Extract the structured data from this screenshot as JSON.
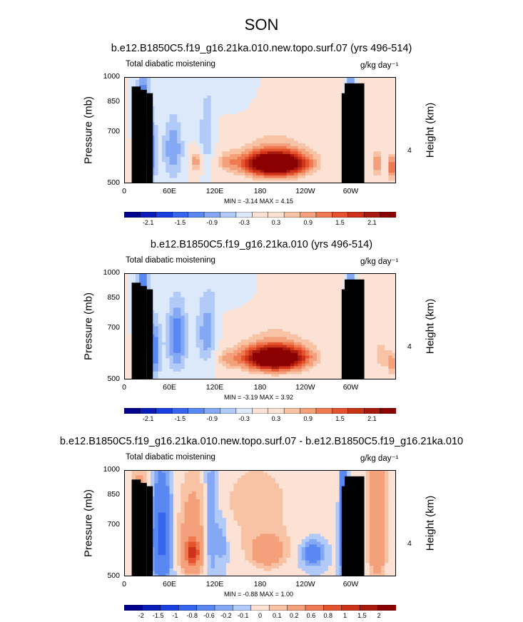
{
  "title": "SON",
  "colors": {
    "land": "#000000",
    "positive_core": "#8b0000",
    "negative_core": "#00008f"
  },
  "chart_data": [
    {
      "type": "heatmap",
      "title": "b.e12.B1850C5.f19_g16.21ka.010.new.topo.surf.07 (yrs 496-514)",
      "left_label": "Total diabatic moistening",
      "units": "g/kg day⁻¹",
      "ylabel": "Pressure (mb)",
      "ylabel_right": "Height (km)",
      "y_ticks": [
        "500",
        "700",
        "850",
        "1000"
      ],
      "right_ticks": [
        "4"
      ],
      "x_ticks": [
        "0",
        "60E",
        "120E",
        "180",
        "120W",
        "60W"
      ],
      "ylim": [
        1000,
        500
      ],
      "xlim": [
        0,
        360
      ],
      "stats": "MIN = -3.14  MAX =  4.15",
      "colorbar_labels": [
        "-2.1",
        "-1.5",
        "-0.9",
        "-0.3",
        "0.3",
        "0.9",
        "1.5",
        "2.1"
      ],
      "colorbar_levels": [
        "-2.4",
        "-2.1",
        "-1.8",
        "-1.5",
        "-1.2",
        "-0.9",
        "-0.6",
        "-0.3",
        "0",
        "0.3",
        "0.6",
        "0.9",
        "1.2",
        "1.5",
        "1.8",
        "2.1",
        "2.4"
      ],
      "features": [
        {
          "lon": 25,
          "p": 650,
          "v": -1.5,
          "wl": 5,
          "wp": 140
        },
        {
          "lon": 35,
          "p": 820,
          "v": -1.2,
          "wl": 6,
          "wp": 120
        },
        {
          "lon": 65,
          "p": 800,
          "v": -0.9,
          "wl": 9,
          "wp": 110
        },
        {
          "lon": 95,
          "p": 870,
          "v": 1.2,
          "wl": 5,
          "wp": 40
        },
        {
          "lon": 110,
          "p": 730,
          "v": -0.6,
          "wl": 8,
          "wp": 130
        },
        {
          "lon": 135,
          "p": 870,
          "v": 0.6,
          "wl": 10,
          "wp": 45
        },
        {
          "lon": 200,
          "p": 880,
          "v": 3.5,
          "wl": 30,
          "wp": 50
        },
        {
          "lon": 200,
          "p": 780,
          "v": 0.6,
          "wl": 45,
          "wp": 150
        },
        {
          "lon": 300,
          "p": 750,
          "v": -2.4,
          "wl": 3,
          "wp": 180
        },
        {
          "lon": 335,
          "p": 880,
          "v": 1.2,
          "wl": 5,
          "wp": 60
        },
        {
          "lon": 355,
          "p": 900,
          "v": 1.5,
          "wl": 5,
          "wp": 60
        },
        {
          "lon": 150,
          "p": 560,
          "v": -0.4,
          "wl": 20,
          "wp": 60
        }
      ],
      "land": [
        {
          "lon0": 10,
          "lon1": 22,
          "p": 940
        },
        {
          "lon0": 20,
          "lon1": 30,
          "p": 920
        },
        {
          "lon0": 30,
          "lon1": 38,
          "p": 900
        },
        {
          "lon0": 288,
          "lon1": 292,
          "p": 900
        },
        {
          "lon0": 292,
          "lon1": 318,
          "p": 960
        }
      ]
    },
    {
      "type": "heatmap",
      "title": "b.e12.B1850C5.f19_g16.21ka.010 (yrs 496-514)",
      "left_label": "Total diabatic moistening",
      "units": "g/kg day⁻¹",
      "ylabel": "Pressure (mb)",
      "ylabel_right": "Height (km)",
      "y_ticks": [
        "500",
        "700",
        "850",
        "1000"
      ],
      "right_ticks": [
        "4"
      ],
      "x_ticks": [
        "0",
        "60E",
        "120E",
        "180",
        "120W",
        "60W"
      ],
      "ylim": [
        1000,
        500
      ],
      "xlim": [
        0,
        360
      ],
      "stats": "MIN = -3.19  MAX =  3.92",
      "colorbar_labels": [
        "-2.1",
        "-1.5",
        "-0.9",
        "-0.3",
        "0.3",
        "0.9",
        "1.5",
        "2.1"
      ],
      "colorbar_levels": [
        "-2.4",
        "-2.1",
        "-1.8",
        "-1.5",
        "-1.2",
        "-0.9",
        "-0.6",
        "-0.3",
        "0",
        "0.3",
        "0.6",
        "0.9",
        "1.2",
        "1.5",
        "1.8",
        "2.1",
        "2.4"
      ],
      "features": [
        {
          "lon": 25,
          "p": 650,
          "v": -1.8,
          "wl": 5,
          "wp": 140
        },
        {
          "lon": 40,
          "p": 830,
          "v": -1.2,
          "wl": 6,
          "wp": 110
        },
        {
          "lon": 70,
          "p": 760,
          "v": -1.2,
          "wl": 9,
          "wp": 120
        },
        {
          "lon": 110,
          "p": 740,
          "v": -0.9,
          "wl": 10,
          "wp": 120
        },
        {
          "lon": 135,
          "p": 880,
          "v": 0.6,
          "wl": 10,
          "wp": 40
        },
        {
          "lon": 200,
          "p": 870,
          "v": 3.3,
          "wl": 30,
          "wp": 50
        },
        {
          "lon": 200,
          "p": 770,
          "v": 0.6,
          "wl": 45,
          "wp": 150
        },
        {
          "lon": 300,
          "p": 750,
          "v": -2.4,
          "wl": 3,
          "wp": 180
        },
        {
          "lon": 340,
          "p": 850,
          "v": 0.9,
          "wl": 6,
          "wp": 70
        },
        {
          "lon": 355,
          "p": 900,
          "v": 1.2,
          "wl": 5,
          "wp": 60
        },
        {
          "lon": 150,
          "p": 560,
          "v": -0.4,
          "wl": 20,
          "wp": 60
        }
      ],
      "land": [
        {
          "lon0": 10,
          "lon1": 22,
          "p": 940
        },
        {
          "lon0": 20,
          "lon1": 30,
          "p": 920
        },
        {
          "lon0": 30,
          "lon1": 38,
          "p": 900
        },
        {
          "lon0": 288,
          "lon1": 292,
          "p": 900
        },
        {
          "lon0": 292,
          "lon1": 318,
          "p": 960
        }
      ]
    },
    {
      "type": "heatmap",
      "title": "b.e12.B1850C5.f19_g16.21ka.010.new.topo.surf.07 - b.e12.B1850C5.f19_g16.21ka.010",
      "left_label": "Total diabatic moistening",
      "units": "g/kg day⁻¹",
      "ylabel": "Pressure (mb)",
      "ylabel_right": "Height (km)",
      "y_ticks": [
        "500",
        "700",
        "850",
        "1000"
      ],
      "right_ticks": [
        "4"
      ],
      "x_ticks": [
        "0",
        "60E",
        "120E",
        "180",
        "120W",
        "60W"
      ],
      "ylim": [
        1000,
        500
      ],
      "xlim": [
        0,
        360
      ],
      "stats": "MIN = -0.88  MAX =  1.00",
      "colorbar_labels": [
        "-2",
        "-1.5",
        "-1",
        "-0.8",
        "-0.6",
        "-0.2",
        "-0.1",
        "0",
        "0.1",
        "0.2",
        "0.6",
        "0.8",
        "1",
        "1.5",
        "2"
      ],
      "colorbar_levels": [
        "-2",
        "-1.5",
        "-1",
        "-0.8",
        "-0.6",
        "-0.2",
        "-0.1",
        "0",
        "0.1",
        "0.2",
        "0.6",
        "0.8",
        "1",
        "1.5",
        "2"
      ],
      "features": [
        {
          "lon": 50,
          "p": 760,
          "v": -0.8,
          "wl": 8,
          "wp": 160
        },
        {
          "lon": 90,
          "p": 860,
          "v": 0.9,
          "wl": 8,
          "wp": 60
        },
        {
          "lon": 90,
          "p": 760,
          "v": 0.3,
          "wl": 12,
          "wp": 160
        },
        {
          "lon": 115,
          "p": 700,
          "v": -0.3,
          "wl": 6,
          "wp": 200
        },
        {
          "lon": 130,
          "p": 800,
          "v": -0.2,
          "wl": 5,
          "wp": 100
        },
        {
          "lon": 190,
          "p": 850,
          "v": 0.4,
          "wl": 15,
          "wp": 60
        },
        {
          "lon": 175,
          "p": 620,
          "v": 0.12,
          "wl": 60,
          "wp": 200
        },
        {
          "lon": 250,
          "p": 860,
          "v": -0.4,
          "wl": 10,
          "wp": 50
        },
        {
          "lon": 290,
          "p": 700,
          "v": -0.6,
          "wl": 3,
          "wp": 200
        },
        {
          "lon": 335,
          "p": 700,
          "v": 0.6,
          "wl": 8,
          "wp": 200
        },
        {
          "lon": 20,
          "p": 650,
          "v": 0.3,
          "wl": 8,
          "wp": 150
        }
      ],
      "land": [
        {
          "lon0": 10,
          "lon1": 22,
          "p": 940
        },
        {
          "lon0": 20,
          "lon1": 30,
          "p": 920
        },
        {
          "lon0": 30,
          "lon1": 38,
          "p": 900
        },
        {
          "lon0": 288,
          "lon1": 292,
          "p": 900
        },
        {
          "lon0": 292,
          "lon1": 318,
          "p": 960
        }
      ]
    }
  ]
}
